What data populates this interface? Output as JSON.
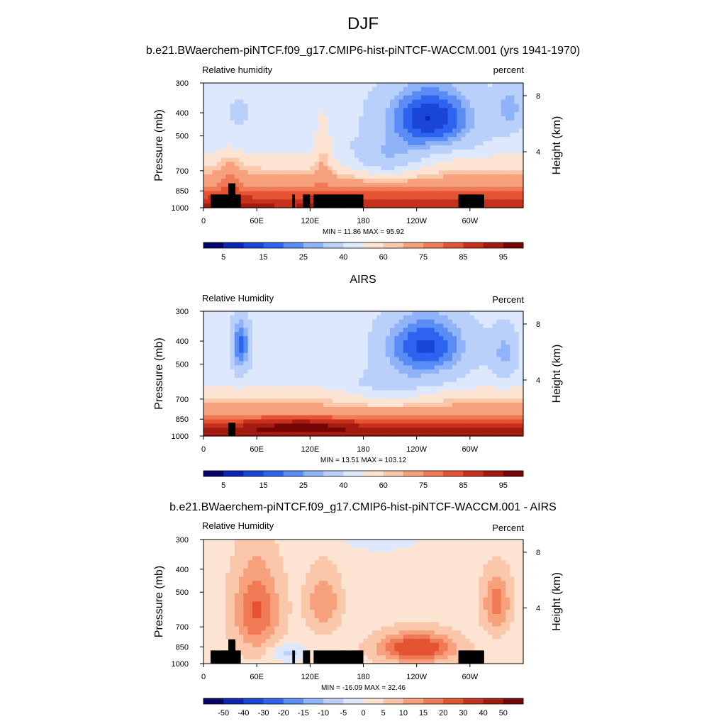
{
  "page": {
    "title": "DJF"
  },
  "panels": [
    {
      "title": "b.e21.BWaerchem-piNTCF.f09_g17.CMIP6-hist-piNTCF-WACCM.001 (yrs 1941-1970)",
      "left_label": "Relative humidity",
      "right_label": "percent",
      "minmax": "MIN =  11.86  MAX =  95.92",
      "colorbar_labels": [
        "5",
        "15",
        "25",
        "40",
        "60",
        "75",
        "85",
        "95"
      ],
      "palette": "abs",
      "terrain": true
    },
    {
      "title": "AIRS",
      "left_label": "Relative Humidity",
      "right_label": "Percent",
      "minmax": "MIN =  13.51  MAX = 103.12",
      "colorbar_labels": [
        "5",
        "15",
        "25",
        "40",
        "60",
        "75",
        "85",
        "95"
      ],
      "palette": "abs",
      "terrain": false
    },
    {
      "title": "b.e21.BWaerchem-piNTCF.f09_g17.CMIP6-hist-piNTCF-WACCM.001 - AIRS",
      "left_label": "Relative Humidity",
      "right_label": "Percent",
      "minmax": "MIN = -16.09  MAX =  32.46",
      "colorbar_labels": [
        "-50",
        "-40",
        "-30",
        "-20",
        "-15",
        "-10",
        "-5",
        "0",
        "5",
        "10",
        "15",
        "20",
        "30",
        "40",
        "50"
      ],
      "palette": "diff",
      "terrain": true
    }
  ],
  "axes": {
    "ylabel": "Pressure (mb)",
    "y2label": "Height (km)",
    "x_ticks": [
      "0",
      "60E",
      "120E",
      "180",
      "120W",
      "60W"
    ],
    "y_ticks": [
      "300",
      "400",
      "500",
      "700",
      "850",
      "1000"
    ],
    "y2_ticks": [
      "8",
      "4"
    ]
  },
  "colors": {
    "abs": [
      "#05056e",
      "#0c26b4",
      "#1a46d8",
      "#2d63ee",
      "#5a8cf5",
      "#8fb2f8",
      "#b9d0fa",
      "#dde8fc",
      "#fde4d2",
      "#fbc7aa",
      "#f6a07c",
      "#ef7a55",
      "#e45332",
      "#c5311c",
      "#a21a10",
      "#760606"
    ],
    "diff": [
      "#05056e",
      "#0c26b4",
      "#1a46d8",
      "#2d63ee",
      "#5a8cf5",
      "#8fb2f8",
      "#b9d0fa",
      "#dde8fc",
      "#fde4d2",
      "#fbc7aa",
      "#f6a07c",
      "#ef7a55",
      "#e45332",
      "#c5311c",
      "#a21a10",
      "#760606"
    ]
  },
  "chart_data": [
    {
      "type": "heatmap",
      "title": "b.e21.BWaerchem-piNTCF.f09_g17.CMIP6-hist-piNTCF-WACCM.001 (yrs 1941-1970)",
      "variable": "Relative humidity",
      "units": "percent",
      "ylabel": "Pressure (mb)",
      "y2label": "Height (km)",
      "x_ticks": [
        "0",
        "60E",
        "120E",
        "180",
        "120W",
        "60W"
      ],
      "y_ticks": [
        300,
        400,
        500,
        700,
        850,
        1000
      ],
      "y_scale": "log",
      "ylim": [
        1000,
        300
      ],
      "min": 11.86,
      "max": 95.92,
      "contour_levels": [
        5,
        10,
        15,
        20,
        25,
        30,
        40,
        50,
        60,
        65,
        75,
        80,
        85,
        90,
        95
      ]
    },
    {
      "type": "heatmap",
      "title": "AIRS",
      "variable": "Relative Humidity",
      "units": "Percent",
      "ylabel": "Pressure (mb)",
      "y2label": "Height (km)",
      "x_ticks": [
        "0",
        "60E",
        "120E",
        "180",
        "120W",
        "60W"
      ],
      "y_ticks": [
        300,
        400,
        500,
        700,
        850,
        1000
      ],
      "y_scale": "log",
      "ylim": [
        1000,
        300
      ],
      "min": 13.51,
      "max": 103.12,
      "contour_levels": [
        5,
        10,
        15,
        20,
        25,
        30,
        40,
        50,
        60,
        65,
        75,
        80,
        85,
        90,
        95
      ]
    },
    {
      "type": "heatmap",
      "title": "b.e21.BWaerchem-piNTCF.f09_g17.CMIP6-hist-piNTCF-WACCM.001 - AIRS",
      "variable": "Relative Humidity",
      "units": "Percent",
      "ylabel": "Pressure (mb)",
      "y2label": "Height (km)",
      "x_ticks": [
        "0",
        "60E",
        "120E",
        "180",
        "120W",
        "60W"
      ],
      "y_ticks": [
        300,
        400,
        500,
        700,
        850,
        1000
      ],
      "y_scale": "log",
      "ylim": [
        1000,
        300
      ],
      "min": -16.09,
      "max": 32.46,
      "contour_levels": [
        -50,
        -40,
        -30,
        -20,
        -15,
        -10,
        -5,
        0,
        5,
        10,
        15,
        20,
        30,
        40,
        50
      ]
    }
  ]
}
